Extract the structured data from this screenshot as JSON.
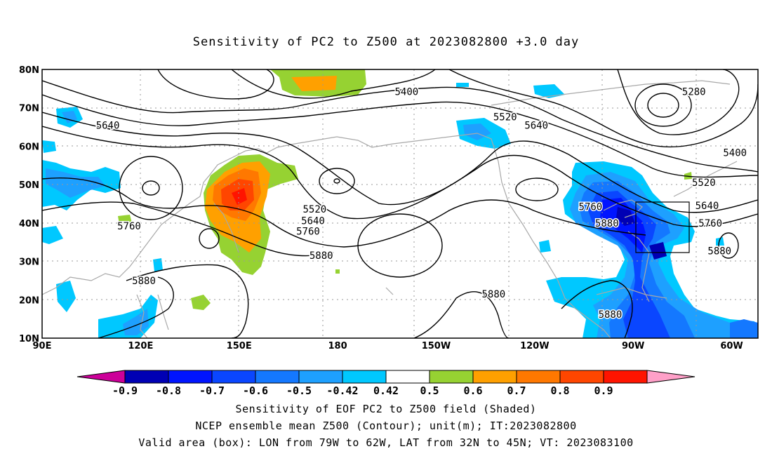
{
  "title": "Sensitivity of PC2 to Z500 at 2023082800 +3.0 day",
  "map": {
    "lon_range": [
      90,
      308
    ],
    "lat_range": [
      10,
      80
    ],
    "lat_ticks": [
      {
        "lat": 80,
        "label": "80N"
      },
      {
        "lat": 70,
        "label": "70N"
      },
      {
        "lat": 60,
        "label": "60N"
      },
      {
        "lat": 50,
        "label": "50N"
      },
      {
        "lat": 40,
        "label": "40N"
      },
      {
        "lat": 30,
        "label": "30N"
      },
      {
        "lat": 20,
        "label": "20N"
      },
      {
        "lat": 10,
        "label": "10N"
      }
    ],
    "lon_ticks": [
      {
        "lon": 90,
        "label": "90E"
      },
      {
        "lon": 120,
        "label": "120E"
      },
      {
        "lon": 150,
        "label": "150E"
      },
      {
        "lon": 180,
        "label": "180"
      },
      {
        "lon": 210,
        "label": "150W"
      },
      {
        "lon": 240,
        "label": "120W"
      },
      {
        "lon": 270,
        "label": "90W"
      },
      {
        "lon": 300,
        "label": "60W"
      }
    ],
    "contour_labels": [
      {
        "text": "5400",
        "lon": 201,
        "lat": 74.2
      },
      {
        "text": "5280",
        "lon": 288.5,
        "lat": 74.2
      },
      {
        "text": "5520",
        "lon": 231,
        "lat": 67.7
      },
      {
        "text": "5640",
        "lon": 110,
        "lat": 65.5
      },
      {
        "text": "5640",
        "lon": 240.5,
        "lat": 65.5
      },
      {
        "text": "5400",
        "lon": 301,
        "lat": 58.3
      },
      {
        "text": "5520",
        "lon": 291.5,
        "lat": 50.6
      },
      {
        "text": "5520",
        "lon": 173,
        "lat": 43.6
      },
      {
        "text": "5640",
        "lon": 172.5,
        "lat": 40.6
      },
      {
        "text": "5760",
        "lon": 171,
        "lat": 37.9
      },
      {
        "text": "5880",
        "lon": 175,
        "lat": 31.6
      },
      {
        "text": "5760",
        "lon": 116.5,
        "lat": 39.2
      },
      {
        "text": "5880",
        "lon": 121,
        "lat": 25.0
      },
      {
        "text": "5760",
        "lon": 257,
        "lat": 44.3
      },
      {
        "text": "5880",
        "lon": 262,
        "lat": 40.0
      },
      {
        "text": "5640",
        "lon": 292.5,
        "lat": 44.5
      },
      {
        "text": "5760",
        "lon": 293.5,
        "lat": 40.0
      },
      {
        "text": "5880",
        "lon": 296.3,
        "lat": 32.8
      },
      {
        "text": "5880",
        "lon": 227.5,
        "lat": 21.5
      },
      {
        "text": "5880",
        "lon": 263,
        "lat": 16.2
      }
    ],
    "valid_box": {
      "lon_w": -79,
      "lon_e": -62,
      "lat_s": 32,
      "lat_n": 45
    }
  },
  "colorbar": {
    "labels": [
      "-0.9",
      "-0.8",
      "-0.7",
      "-0.6",
      "-0.5",
      "-0.42",
      "0.42",
      "0.5",
      "0.6",
      "0.7",
      "0.8",
      "0.9"
    ],
    "colors": [
      "#cc0099",
      "#0000b4",
      "#0014ff",
      "#0a46ff",
      "#1478ff",
      "#1ea0ff",
      "#00c8ff",
      "#ffffff",
      "#96d232",
      "#ffa000",
      "#ff7800",
      "#ff4600",
      "#ff1400",
      "#ffa0c8"
    ]
  },
  "caption": {
    "line1": "Sensitivity of EOF PC2 to Z500 field (Shaded)",
    "line2": "NCEP ensemble mean Z500 (Contour); unit(m); IT:2023082800",
    "line3": "Valid area (box): LON from 79W to 62W, LAT from 32N to 45N; VT: 2023083100"
  }
}
